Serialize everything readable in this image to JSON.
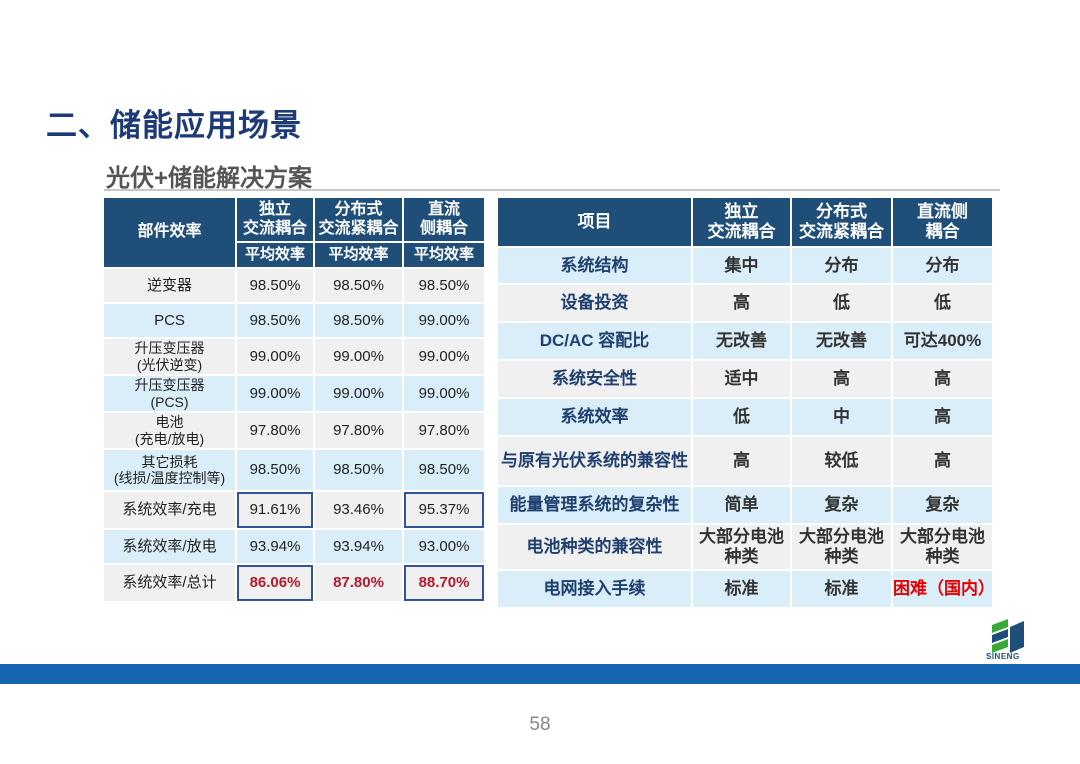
{
  "title": "二、储能应用场景",
  "subtitle": "光伏+储能解决方案",
  "left_table": {
    "header_first": "部件效率",
    "columns": [
      "独立\n交流耦合",
      "分布式\n交流紧耦合",
      "直流\n侧耦合"
    ],
    "col1_line1": "独立",
    "col1_line2": "交流耦合",
    "col2_line1": "分布式",
    "col2_line2": "交流紧耦合",
    "col3_line1": "直流",
    "col3_line2": "侧耦合",
    "sub_header": "平均效率",
    "rows": [
      {
        "l1": "逆变器",
        "l2": "",
        "v": [
          "98.50%",
          "98.50%",
          "98.50%"
        ]
      },
      {
        "l1": "PCS",
        "l2": "",
        "v": [
          "98.50%",
          "98.50%",
          "99.00%"
        ]
      },
      {
        "l1": "升压变压器",
        "l2": "(光伏逆变)",
        "v": [
          "99.00%",
          "99.00%",
          "99.00%"
        ]
      },
      {
        "l1": "升压变压器",
        "l2": "(PCS)",
        "v": [
          "99.00%",
          "99.00%",
          "99.00%"
        ]
      },
      {
        "l1": "电池",
        "l2": "(充电/放电)",
        "v": [
          "97.80%",
          "97.80%",
          "97.80%"
        ]
      },
      {
        "l1": "其它损耗",
        "l2": "(线损/温度控制等)",
        "v": [
          "98.50%",
          "98.50%",
          "98.50%"
        ]
      },
      {
        "l1": "系统效率/充电",
        "l2": "",
        "v": [
          "91.61%",
          "93.46%",
          "95.37%"
        ]
      },
      {
        "l1": "系统效率/放电",
        "l2": "",
        "v": [
          "93.94%",
          "93.94%",
          "93.00%"
        ]
      },
      {
        "l1": "系统效率/总计",
        "l2": "",
        "v": [
          "86.06%",
          "87.80%",
          "88.70%"
        ]
      }
    ]
  },
  "right_table": {
    "header_first": "项目",
    "col1_line1": "独立",
    "col1_line2": "交流耦合",
    "col2_line1": "分布式",
    "col2_line2": "交流紧耦合",
    "col3_line1": "直流侧",
    "col3_line2": "耦合",
    "rows": [
      {
        "item": "系统结构",
        "v": [
          "集中",
          "分布",
          "分布"
        ]
      },
      {
        "item": "设备投资",
        "v": [
          "高",
          "低",
          "低"
        ]
      },
      {
        "item": "DC/AC 容配比",
        "v": [
          "无改善",
          "无改善",
          "可达400%"
        ]
      },
      {
        "item": "系统安全性",
        "v": [
          "适中",
          "高",
          "高"
        ]
      },
      {
        "item": "系统效率",
        "v": [
          "低",
          "中",
          "高"
        ]
      },
      {
        "item": "与原有光伏系统的兼容性",
        "v": [
          "高",
          "较低",
          "高"
        ]
      },
      {
        "item": "能量管理系统的复杂性",
        "v": [
          "简单",
          "复杂",
          "复杂"
        ]
      },
      {
        "item": "电池种类的兼容性",
        "v": [
          "大部分电池\n种类",
          "大部分电池\n种类",
          "大部分电池\n种类"
        ],
        "v_l1": [
          "大部分电池",
          "大部分电池",
          "大部分电池"
        ],
        "v_l2": [
          "种类",
          "种类",
          "种类"
        ]
      },
      {
        "item": "电网接入手续",
        "v": [
          "标准",
          "标准",
          "困难（国内）"
        ]
      }
    ]
  },
  "logo_text": "SINENG",
  "page_number": "58",
  "colors": {
    "title": "#1d3a78",
    "header_bg": "#1f4e79",
    "row_light_blue": "#d9eef8",
    "row_gray": "#f0f0f0",
    "highlight_red": "#b3182b",
    "band_blue": "#1565b0"
  }
}
